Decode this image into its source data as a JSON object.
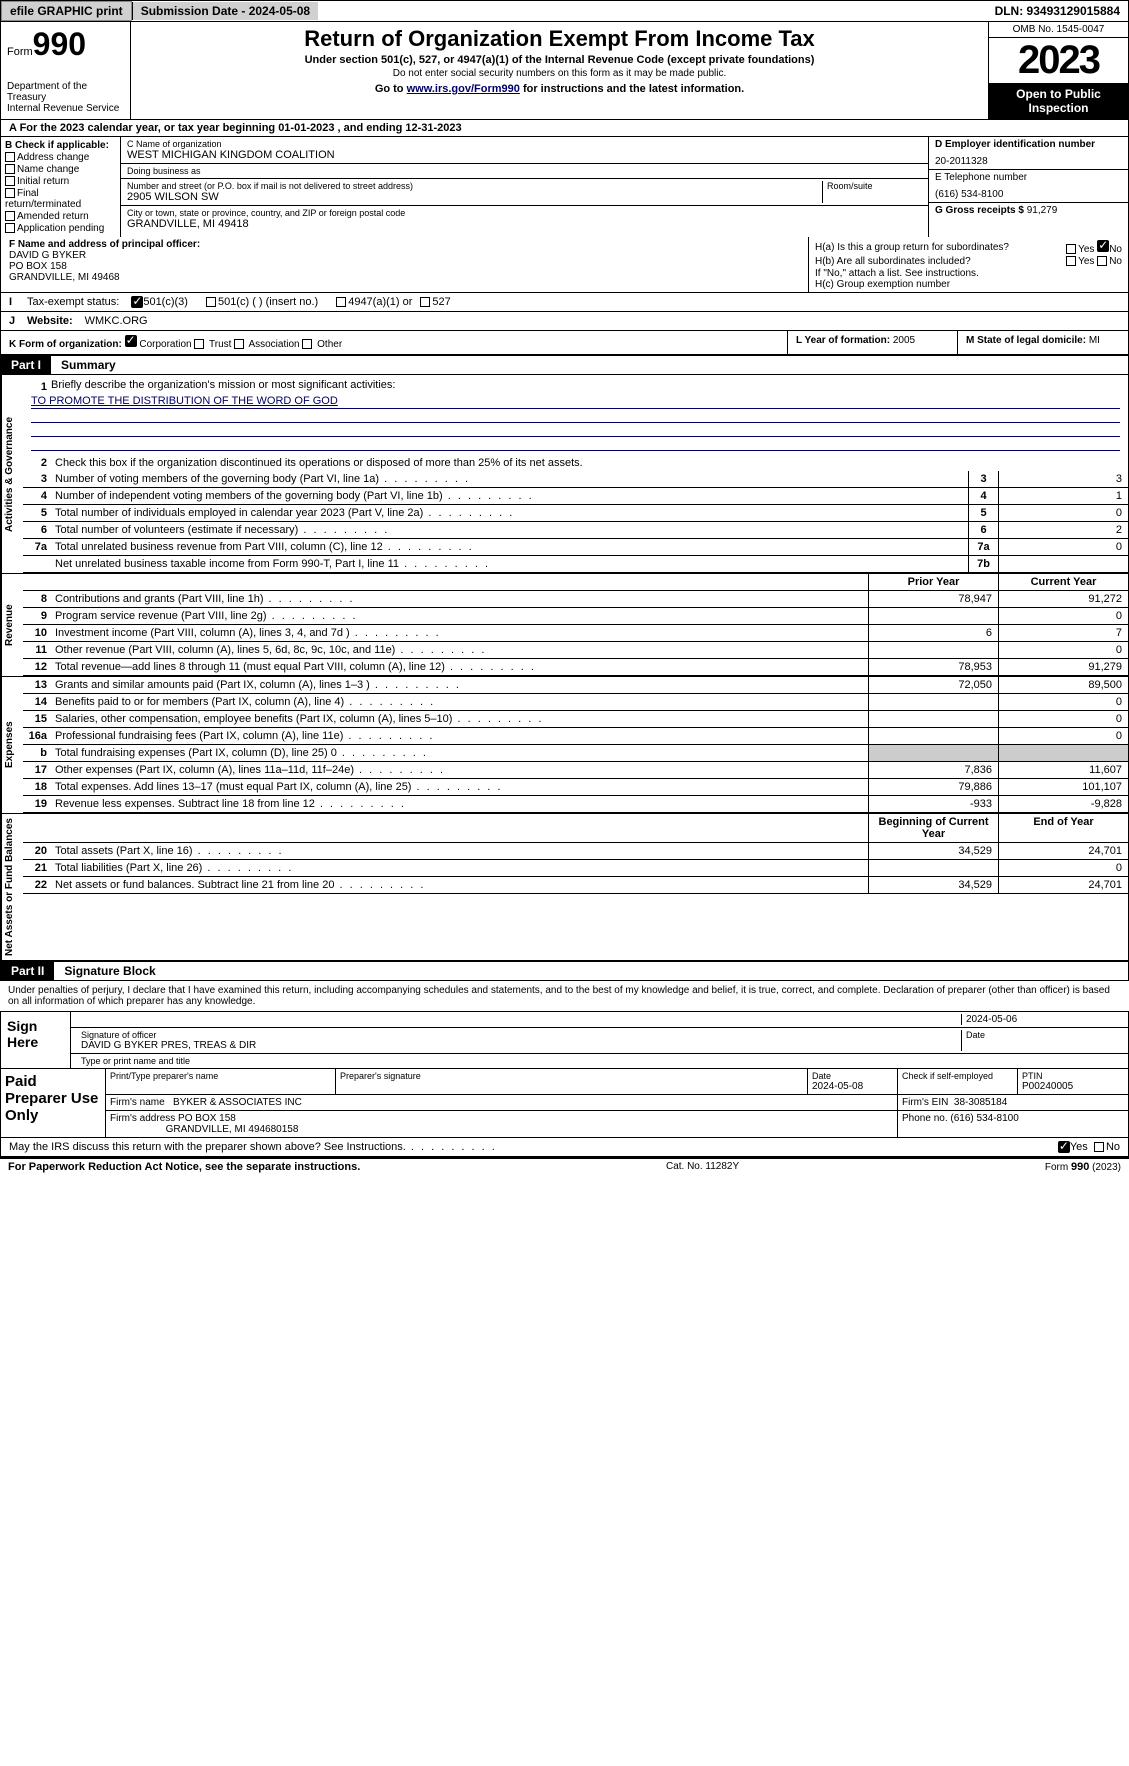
{
  "topbar": {
    "efile": "efile GRAPHIC print",
    "submission": "Submission Date - 2024-05-08",
    "dln": "DLN: 93493129015884"
  },
  "header": {
    "form_word": "Form",
    "form_num": "990",
    "dept": "Department of the Treasury\nInternal Revenue Service",
    "title": "Return of Organization Exempt From Income Tax",
    "sub": "Under section 501(c), 527, or 4947(a)(1) of the Internal Revenue Code (except private foundations)",
    "note": "Do not enter social security numbers on this form as it may be made public.",
    "link_pre": "Go to ",
    "link": "www.irs.gov/Form990",
    "link_post": " for instructions and the latest information.",
    "omb": "OMB No. 1545-0047",
    "year": "2023",
    "open": "Open to Public Inspection"
  },
  "lineA": "A  For the 2023 calendar year, or tax year beginning 01-01-2023    , and ending 12-31-2023",
  "colB": {
    "hdr": "B Check if applicable:",
    "opts": [
      "Address change",
      "Name change",
      "Initial return",
      "Final return/terminated",
      "Amended return",
      "Application pending"
    ]
  },
  "colC": {
    "name_lbl": "C Name of organization",
    "name": "WEST MICHIGAN KINGDOM COALITION",
    "dba_lbl": "Doing business as",
    "dba": "",
    "street_lbl": "Number and street (or P.O. box if mail is not delivered to street address)",
    "street": "2905 WILSON SW",
    "room_lbl": "Room/suite",
    "city_lbl": "City or town, state or province, country, and ZIP or foreign postal code",
    "city": "GRANDVILLE, MI  49418"
  },
  "colD": {
    "ein_lbl": "D Employer identification number",
    "ein": "20-2011328",
    "tel_lbl": "E Telephone number",
    "tel": "(616) 534-8100",
    "gross_lbl": "G Gross receipts $",
    "gross": "91,279"
  },
  "fh": {
    "f_lbl": "F  Name and address of principal officer:",
    "f_name": "DAVID G BYKER",
    "f_addr1": "PO BOX 158",
    "f_addr2": "GRANDVILLE, MI  49468",
    "ha_lbl": "H(a)  Is this a group return for subordinates?",
    "hb_lbl": "H(b)  Are all subordinates included?",
    "hb_note": "If \"No,\" attach a list. See instructions.",
    "hc_lbl": "H(c)  Group exemption number",
    "yes": "Yes",
    "no": "No"
  },
  "rowI": {
    "lbl": "Tax-exempt status:",
    "o1": "501(c)(3)",
    "o2": "501(c) (  ) (insert no.)",
    "o3": "4947(a)(1) or",
    "o4": "527"
  },
  "rowJ": {
    "lbl": "Website:",
    "val": "WMKC.ORG"
  },
  "rowK": {
    "lbl": "K Form of organization:",
    "o1": "Corporation",
    "o2": "Trust",
    "o3": "Association",
    "o4": "Other",
    "l_lbl": "L Year of formation:",
    "l_val": "2005",
    "m_lbl": "M State of legal domicile:",
    "m_val": "MI"
  },
  "part1": {
    "num": "Part I",
    "title": "Summary"
  },
  "p1": {
    "l1_lbl": "Briefly describe the organization's mission or most significant activities:",
    "l1_val": "TO PROMOTE THE DISTRIBUTION OF THE WORD OF GOD",
    "l2": "Check this box      if the organization discontinued its operations or disposed of more than 25% of its net assets.",
    "rows_gov": [
      {
        "n": "3",
        "d": "Number of voting members of the governing body (Part VI, line 1a)",
        "b": "3",
        "v": "3"
      },
      {
        "n": "4",
        "d": "Number of independent voting members of the governing body (Part VI, line 1b)",
        "b": "4",
        "v": "1"
      },
      {
        "n": "5",
        "d": "Total number of individuals employed in calendar year 2023 (Part V, line 2a)",
        "b": "5",
        "v": "0"
      },
      {
        "n": "6",
        "d": "Total number of volunteers (estimate if necessary)",
        "b": "6",
        "v": "2"
      },
      {
        "n": "7a",
        "d": "Total unrelated business revenue from Part VIII, column (C), line 12",
        "b": "7a",
        "v": "0"
      },
      {
        "n": "",
        "d": "Net unrelated business taxable income from Form 990-T, Part I, line 11",
        "b": "7b",
        "v": ""
      }
    ],
    "col_hdr_prior": "Prior Year",
    "col_hdr_curr": "Current Year",
    "rev": [
      {
        "n": "8",
        "d": "Contributions and grants (Part VIII, line 1h)",
        "p": "78,947",
        "c": "91,272"
      },
      {
        "n": "9",
        "d": "Program service revenue (Part VIII, line 2g)",
        "p": "",
        "c": "0"
      },
      {
        "n": "10",
        "d": "Investment income (Part VIII, column (A), lines 3, 4, and 7d )",
        "p": "6",
        "c": "7"
      },
      {
        "n": "11",
        "d": "Other revenue (Part VIII, column (A), lines 5, 6d, 8c, 9c, 10c, and 11e)",
        "p": "",
        "c": "0"
      },
      {
        "n": "12",
        "d": "Total revenue—add lines 8 through 11 (must equal Part VIII, column (A), line 12)",
        "p": "78,953",
        "c": "91,279"
      }
    ],
    "exp": [
      {
        "n": "13",
        "d": "Grants and similar amounts paid (Part IX, column (A), lines 1–3 )",
        "p": "72,050",
        "c": "89,500"
      },
      {
        "n": "14",
        "d": "Benefits paid to or for members (Part IX, column (A), line 4)",
        "p": "",
        "c": "0"
      },
      {
        "n": "15",
        "d": "Salaries, other compensation, employee benefits (Part IX, column (A), lines 5–10)",
        "p": "",
        "c": "0"
      },
      {
        "n": "16a",
        "d": "Professional fundraising fees (Part IX, column (A), line 11e)",
        "p": "",
        "c": "0"
      },
      {
        "n": "b",
        "d": "Total fundraising expenses (Part IX, column (D), line 25) 0",
        "p": "GREY",
        "c": "GREY"
      },
      {
        "n": "17",
        "d": "Other expenses (Part IX, column (A), lines 11a–11d, 11f–24e)",
        "p": "7,836",
        "c": "11,607"
      },
      {
        "n": "18",
        "d": "Total expenses. Add lines 13–17 (must equal Part IX, column (A), line 25)",
        "p": "79,886",
        "c": "101,107"
      },
      {
        "n": "19",
        "d": "Revenue less expenses. Subtract line 18 from line 12",
        "p": "-933",
        "c": "-9,828"
      }
    ],
    "col_hdr_beg": "Beginning of Current Year",
    "col_hdr_end": "End of Year",
    "net": [
      {
        "n": "20",
        "d": "Total assets (Part X, line 16)",
        "p": "34,529",
        "c": "24,701"
      },
      {
        "n": "21",
        "d": "Total liabilities (Part X, line 26)",
        "p": "",
        "c": "0"
      },
      {
        "n": "22",
        "d": "Net assets or fund balances. Subtract line 21 from line 20",
        "p": "34,529",
        "c": "24,701"
      }
    ],
    "vert_gov": "Activities & Governance",
    "vert_rev": "Revenue",
    "vert_exp": "Expenses",
    "vert_net": "Net Assets or Fund Balances"
  },
  "part2": {
    "num": "Part II",
    "title": "Signature Block"
  },
  "sig": {
    "intro": "Under penalties of perjury, I declare that I have examined this return, including accompanying schedules and statements, and to the best of my knowledge and belief, it is true, correct, and complete. Declaration of preparer (other than officer) is based on all information of which preparer has any knowledge.",
    "sign_here": "Sign Here",
    "date": "2024-05-06",
    "sig_lbl": "Signature of officer",
    "officer": "DAVID G BYKER  PRES, TREAS & DIR",
    "type_lbl": "Type or print name and title",
    "date_lbl": "Date"
  },
  "paid": {
    "lbl": "Paid Preparer Use Only",
    "h1": "Print/Type preparer's name",
    "h2": "Preparer's signature",
    "h3": "Date",
    "h3v": "2024-05-08",
    "h4": "Check      if self-employed",
    "h5": "PTIN",
    "h5v": "P00240005",
    "firm_lbl": "Firm's name",
    "firm": "BYKER & ASSOCIATES INC",
    "ein_lbl": "Firm's EIN",
    "ein": "38-3085184",
    "addr_lbl": "Firm's address",
    "addr1": "PO BOX 158",
    "addr2": "GRANDVILLE, MI  494680158",
    "phone_lbl": "Phone no.",
    "phone": "(616) 534-8100"
  },
  "mayirs": {
    "q": "May the IRS discuss this return with the preparer shown above? See Instructions.",
    "yes": "Yes",
    "no": "No"
  },
  "footer": {
    "left": "For Paperwork Reduction Act Notice, see the separate instructions.",
    "mid": "Cat. No. 11282Y",
    "right_a": "Form ",
    "right_b": "990",
    "right_c": " (2023)"
  }
}
